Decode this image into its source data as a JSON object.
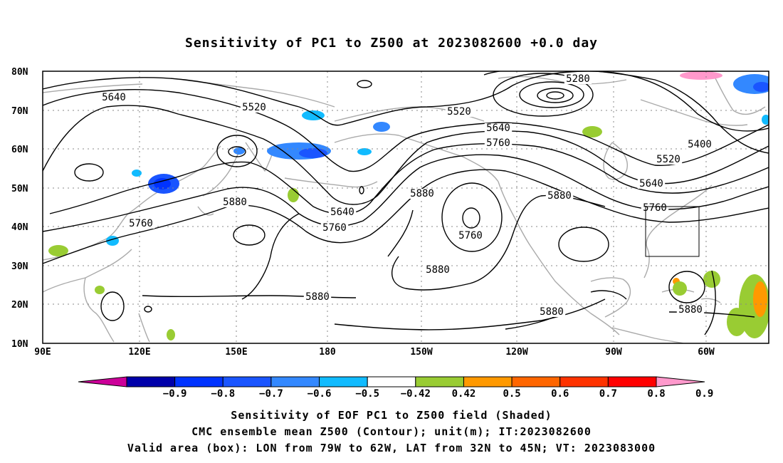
{
  "title": "Sensitivity of PC1 to Z500 at 2023082600 +0.0 day",
  "axes": {
    "lat_labels": [
      "80N",
      "70N",
      "60N",
      "50N",
      "40N",
      "30N",
      "20N",
      "10N"
    ],
    "lon_labels": [
      "90E",
      "120E",
      "150E",
      "180",
      "150W",
      "120W",
      "90W",
      "60W"
    ]
  },
  "contour_labels": [
    "5280",
    "5400",
    "5520",
    "5520",
    "5520",
    "5640",
    "5640",
    "5640",
    "5640",
    "5760",
    "5760",
    "5760",
    "5760",
    "5760",
    "5880",
    "5880",
    "5880",
    "5880",
    "5880",
    "5880",
    "5880"
  ],
  "valid_box": {
    "lon_from": "79W",
    "lon_to": "62W",
    "lat_from": "32N",
    "lat_to": "45N"
  },
  "colorbar": {
    "labels": [
      "-0.9",
      "-0.8",
      "-0.7",
      "-0.6",
      "-0.5",
      "-0.42",
      "0.42",
      "0.5",
      "0.6",
      "0.7",
      "0.8",
      "0.9"
    ],
    "colors": [
      "#cc0099",
      "#0000aa",
      "#0033ff",
      "#1a55ff",
      "#3388ff",
      "#11bbff",
      "#ffffff",
      "#99cc33",
      "#ff9900",
      "#ff6600",
      "#ff3300",
      "#ff0000",
      "#ff99cc"
    ]
  },
  "captions": {
    "line1": "Sensitivity of EOF PC1 to Z500 field (Shaded)",
    "line2": "CMC ensemble mean Z500 (Contour); unit(m); IT:2023082600",
    "line3": "Valid area (box): LON from 79W to 62W, LAT from 32N to 45N; VT: 2023083000"
  }
}
